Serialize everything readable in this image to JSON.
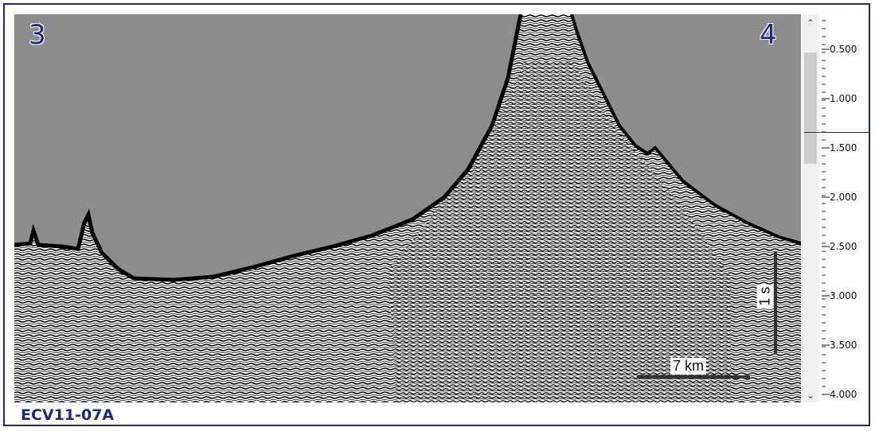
{
  "corner_labels": {
    "left": "3",
    "right": "4"
  },
  "footer": {
    "title": "ECV11-07A"
  },
  "scale_bars": {
    "vertical": "1 s",
    "horizontal": "7 km"
  },
  "scrollbar": {
    "up_icon": "chevron-up-icon",
    "down_icon": "chevron-down-icon",
    "thumb_position": 0.1
  },
  "axis": {
    "ticks": [
      "0.500",
      "1.000",
      "1.500",
      "2.000",
      "2.500",
      "3.000",
      "3.500",
      "4.000"
    ]
  },
  "colors": {
    "border": "#1a2a6c",
    "label": "#1b2a7a",
    "water": "#8c8c8c"
  }
}
